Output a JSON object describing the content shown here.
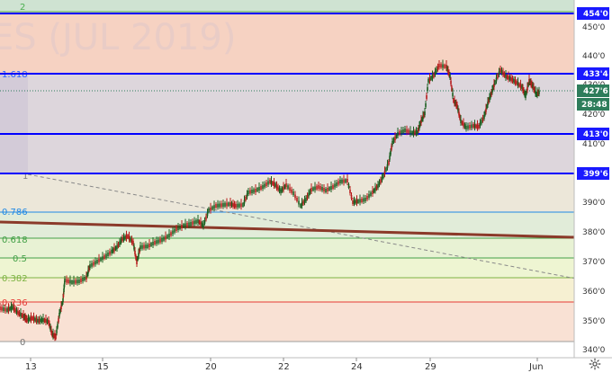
{
  "watermark": "ES (JUL 2019)",
  "price_axis": {
    "ticks": [
      "450'0",
      "440'0",
      "430'0",
      "420'0",
      "410'0",
      "390'0",
      "380'0",
      "370'0",
      "360'0",
      "350'0",
      "340'0"
    ]
  },
  "time_axis": {
    "ticks": [
      "13",
      "15",
      "20",
      "22",
      "24",
      "29",
      "Jun"
    ]
  },
  "fib_levels": [
    {
      "label": "2",
      "color": "#4caf50"
    },
    {
      "label": "1.618",
      "color": "#2962ff"
    },
    {
      "label": "1",
      "color": "#808080"
    },
    {
      "label": "0.786",
      "color": "#1e88e5"
    },
    {
      "label": "0.618",
      "color": "#43a047"
    },
    {
      "label": "0.5",
      "color": "#43a047"
    },
    {
      "label": "0.382",
      "color": "#7cb342"
    },
    {
      "label": "0.236",
      "color": "#e53935"
    },
    {
      "label": "0",
      "color": "#757575"
    }
  ],
  "price_tags": {
    "h_454": "454'0",
    "h_433": "433'4",
    "last": "427'6",
    "countdown": "28:48",
    "h_413": "413'0",
    "h_399": "399'6"
  },
  "colors": {
    "horizontal_line": "#0000ff",
    "trend_line": "#8b3a2a",
    "bull_candle": "#1b5e20",
    "bear_candle": "#b71c1c",
    "last_price_tag": "#2e7d5b"
  },
  "icons": {
    "settings": "gear-icon"
  }
}
